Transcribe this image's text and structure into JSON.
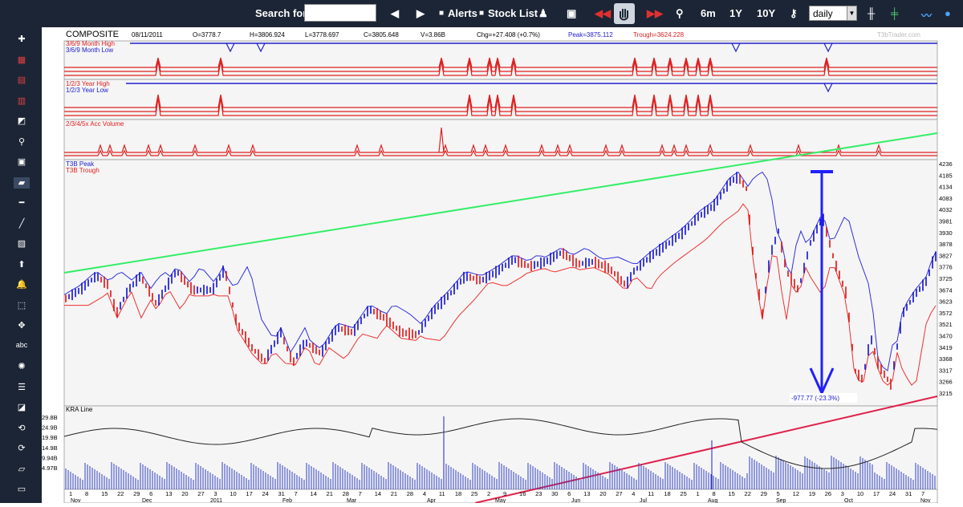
{
  "toolbar": {
    "search_label": "Search for:",
    "search_value": "",
    "alerts_label": "Alerts",
    "stock_list_label": "Stock List",
    "range_6m": "6m",
    "range_1y": "1Y",
    "range_10y": "10Y",
    "interval": "daily",
    "colors": {
      "bg": "#1c2535",
      "accent_red": "#e03030",
      "accent_blue": "#4aa3ff"
    }
  },
  "sidebar": {
    "icons": [
      "plus-icon",
      "chart-type-icon",
      "indicator-icon",
      "overlay-icon",
      "compare-icon",
      "zoom-icon",
      "save-icon",
      "draw-icon",
      "hline-icon",
      "trendline-icon",
      "fib-icon",
      "arrow-up-icon",
      "alert-bell-icon",
      "rectangle-icon",
      "pointer-icon",
      "text-icon",
      "color-icon",
      "menu-icon",
      "clear-icon",
      "undo-icon",
      "redo-icon",
      "eraser-icon",
      "ruler-icon"
    ],
    "text_tool_label": "abc"
  },
  "header": {
    "symbol": "COMPOSITE",
    "date": "08/11/2011",
    "open": "O=3778.7",
    "high": "H=3806.924",
    "low": "L=3778.697",
    "close": "C=3805.648",
    "volume": "V=3.86B",
    "change": "Chg=+27.408 (+0.7%)",
    "peak": "Peak=3875.112",
    "trough": "Trough=3624.228",
    "watermark": "T3bTrader.com"
  },
  "panels": {
    "p1_label1": "3/6/9 Month High",
    "p1_label2": "3/6/9 Month Low",
    "p2_label1": "1/2/3 Year High",
    "p2_label2": "1/2/3 Year Low",
    "p3_label": "2/3/4/5x Acc Volume",
    "main_label1": "T3B Peak",
    "main_label2": "T3B Trough",
    "kra_label": "KRA Line",
    "annotation": "-977.77 (-23.3%)"
  },
  "price_axis": [
    "4236",
    "4185",
    "4134",
    "4083",
    "4032",
    "3981",
    "3930",
    "3878",
    "3827",
    "3776",
    "3725",
    "3674",
    "3623",
    "3572",
    "3521",
    "3470",
    "3419",
    "3368",
    "3317",
    "3266",
    "3215"
  ],
  "volume_axis": [
    "29.8B",
    "24.9B",
    "19.9B",
    "14.9B",
    "9.94B",
    "4.97B"
  ],
  "date_axis": {
    "days": [
      "1",
      "8",
      "15",
      "22",
      "29",
      "6",
      "13",
      "20",
      "27",
      "3",
      "10",
      "17",
      "24",
      "31",
      "7",
      "14",
      "21",
      "28",
      "7",
      "14",
      "21",
      "28",
      "4",
      "11",
      "18",
      "25",
      "2",
      "9",
      "16",
      "23",
      "30",
      "6",
      "13",
      "20",
      "27",
      "4",
      "11",
      "18",
      "25",
      "1",
      "8",
      "15",
      "22",
      "29",
      "5",
      "12",
      "19",
      "26",
      "3",
      "10",
      "17",
      "24",
      "31",
      "7"
    ],
    "months": [
      "Nov",
      "Dec",
      "2011",
      "Feb",
      "Mar",
      "Apr",
      "May",
      "Jun",
      "Jul",
      "Aug",
      "Sep",
      "Oct",
      "Nov"
    ]
  },
  "chart_data": {
    "type": "bar",
    "price_series": [
      {
        "name": "T3B Peak",
        "color": "#2020d0"
      },
      {
        "name": "T3B Trough",
        "color": "#e02020"
      }
    ],
    "price_range": [
      3215,
      4236
    ],
    "price_trendline": {
      "color": "#33ee66"
    },
    "kra_trendline": {
      "color": "#e0204a"
    },
    "drawdown": {
      "label": "-977.77 (-23.3%)"
    },
    "volume_range_B": [
      0,
      29.8
    ]
  }
}
